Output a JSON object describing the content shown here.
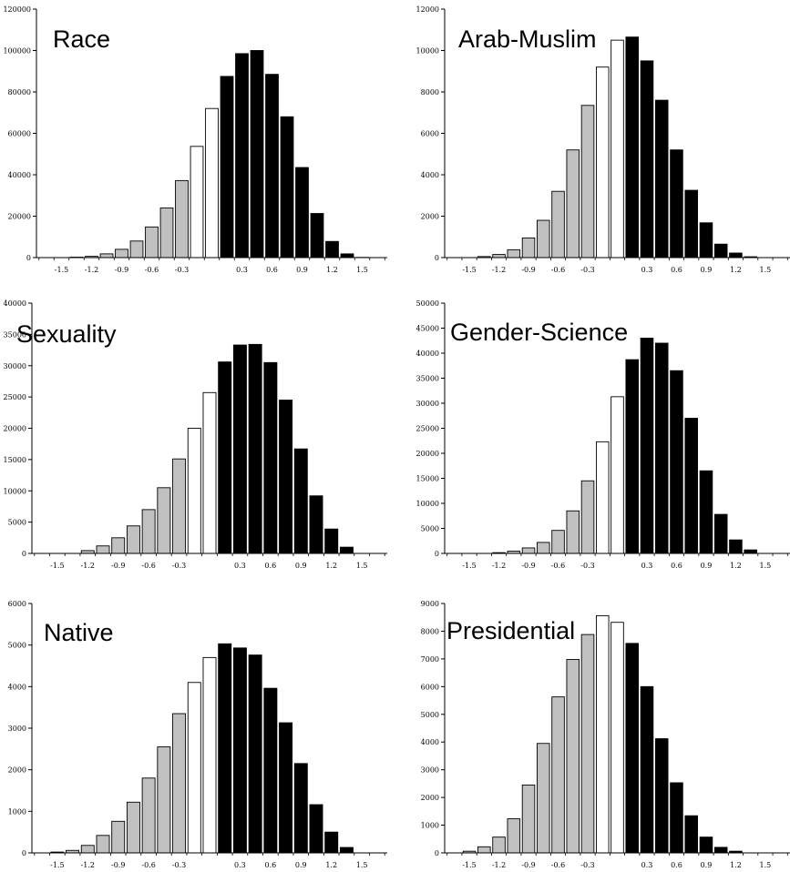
{
  "chart_data": [
    {
      "type": "bar",
      "title": "Race",
      "xlabel": "",
      "ylabel": "",
      "ylim": [
        0,
        120000
      ],
      "yticks": [
        "0",
        "20000",
        "40000",
        "60000",
        "80000",
        "100000",
        "120000"
      ],
      "xticks": [
        "-1.5",
        "-1.2",
        "-0.9",
        "-0.6",
        "-0.3",
        "0.3",
        "0.6",
        "0.9",
        "1.2",
        "1.5"
      ],
      "x": [
        -1.65,
        -1.5,
        -1.35,
        -1.2,
        -1.05,
        -0.9,
        -0.75,
        -0.6,
        -0.45,
        -0.3,
        -0.15,
        0.0,
        0.15,
        0.3,
        0.45,
        0.6,
        0.75,
        0.9,
        1.05,
        1.2,
        1.35,
        1.5,
        1.65
      ],
      "values": [
        0,
        0,
        200,
        600,
        1800,
        4000,
        8000,
        14800,
        24000,
        37200,
        53700,
        72000,
        87500,
        98500,
        100000,
        88500,
        68000,
        43500,
        21300,
        7800,
        1800,
        100,
        0
      ],
      "colors": [
        "#c0c0c0",
        "#c0c0c0",
        "#c0c0c0",
        "#c0c0c0",
        "#c0c0c0",
        "#c0c0c0",
        "#c0c0c0",
        "#c0c0c0",
        "#c0c0c0",
        "#c0c0c0",
        "#ffffff",
        "#ffffff",
        "#000000",
        "#000000",
        "#000000",
        "#000000",
        "#000000",
        "#000000",
        "#000000",
        "#000000",
        "#000000",
        "#000000",
        "#000000"
      ]
    },
    {
      "type": "bar",
      "title": "Arab-Muslim",
      "xlabel": "",
      "ylabel": "",
      "ylim": [
        0,
        12000
      ],
      "yticks": [
        "0",
        "2000",
        "4000",
        "6000",
        "8000",
        "10000",
        "12000"
      ],
      "xticks": [
        "-1.5",
        "-1.2",
        "-0.9",
        "-0.6",
        "-0.3",
        "0.3",
        "0.6",
        "0.9",
        "1.2",
        "1.5"
      ],
      "x": [
        -1.65,
        -1.5,
        -1.35,
        -1.2,
        -1.05,
        -0.9,
        -0.75,
        -0.6,
        -0.45,
        -0.3,
        -0.15,
        0.0,
        0.15,
        0.3,
        0.45,
        0.6,
        0.75,
        0.9,
        1.05,
        1.2,
        1.35,
        1.5,
        1.65
      ],
      "values": [
        0,
        0,
        50,
        150,
        380,
        950,
        1800,
        3200,
        5200,
        7350,
        9200,
        10500,
        10650,
        9500,
        7600,
        5200,
        3250,
        1680,
        650,
        220,
        40,
        0,
        0
      ],
      "colors": [
        "#c0c0c0",
        "#c0c0c0",
        "#c0c0c0",
        "#c0c0c0",
        "#c0c0c0",
        "#c0c0c0",
        "#c0c0c0",
        "#c0c0c0",
        "#c0c0c0",
        "#c0c0c0",
        "#ffffff",
        "#ffffff",
        "#000000",
        "#000000",
        "#000000",
        "#000000",
        "#000000",
        "#000000",
        "#000000",
        "#000000",
        "#000000",
        "#000000",
        "#000000"
      ]
    },
    {
      "type": "bar",
      "title": "Sexuality",
      "xlabel": "",
      "ylabel": "",
      "ylim": [
        0,
        40000
      ],
      "yticks": [
        "0",
        "5000",
        "10000",
        "15000",
        "20000",
        "25000",
        "30000",
        "35000",
        "40000"
      ],
      "xticks": [
        "-1.5",
        "-1.2",
        "-0.9",
        "-0.6",
        "-0.3",
        "0.3",
        "0.6",
        "0.9",
        "1.2",
        "1.5"
      ],
      "x": [
        -1.65,
        -1.5,
        -1.35,
        -1.2,
        -1.05,
        -0.9,
        -0.75,
        -0.6,
        -0.45,
        -0.3,
        -0.15,
        0.0,
        0.15,
        0.3,
        0.45,
        0.6,
        0.75,
        0.9,
        1.05,
        1.2,
        1.35,
        1.5,
        1.65
      ],
      "values": [
        0,
        0,
        0,
        450,
        1200,
        2500,
        4400,
        7000,
        10500,
        15100,
        20000,
        25700,
        30600,
        33300,
        33400,
        30500,
        24500,
        16700,
        9200,
        3900,
        1000,
        0,
        0
      ],
      "colors": [
        "#c0c0c0",
        "#c0c0c0",
        "#c0c0c0",
        "#c0c0c0",
        "#c0c0c0",
        "#c0c0c0",
        "#c0c0c0",
        "#c0c0c0",
        "#c0c0c0",
        "#c0c0c0",
        "#ffffff",
        "#ffffff",
        "#000000",
        "#000000",
        "#000000",
        "#000000",
        "#000000",
        "#000000",
        "#000000",
        "#000000",
        "#000000",
        "#000000",
        "#000000"
      ]
    },
    {
      "type": "bar",
      "title": "Gender-Science",
      "xlabel": "",
      "ylabel": "",
      "ylim": [
        0,
        50000
      ],
      "yticks": [
        "0",
        "5000",
        "10000",
        "15000",
        "20000",
        "25000",
        "30000",
        "35000",
        "40000",
        "45000",
        "50000"
      ],
      "xticks": [
        "-1.5",
        "-1.2",
        "-0.9",
        "-0.6",
        "-0.3",
        "0.3",
        "0.6",
        "0.9",
        "1.2",
        "1.5"
      ],
      "x": [
        -1.65,
        -1.5,
        -1.35,
        -1.2,
        -1.05,
        -0.9,
        -0.75,
        -0.6,
        -0.45,
        -0.3,
        -0.15,
        0.0,
        0.15,
        0.3,
        0.45,
        0.6,
        0.75,
        0.9,
        1.05,
        1.2,
        1.35,
        1.5,
        1.65
      ],
      "values": [
        0,
        0,
        0,
        150,
        450,
        1100,
        2200,
        4600,
        8500,
        14500,
        22300,
        31300,
        38700,
        43000,
        42000,
        36500,
        27000,
        16500,
        7800,
        2700,
        700,
        0,
        0
      ],
      "colors": [
        "#c0c0c0",
        "#c0c0c0",
        "#c0c0c0",
        "#c0c0c0",
        "#c0c0c0",
        "#c0c0c0",
        "#c0c0c0",
        "#c0c0c0",
        "#c0c0c0",
        "#c0c0c0",
        "#ffffff",
        "#ffffff",
        "#000000",
        "#000000",
        "#000000",
        "#000000",
        "#000000",
        "#000000",
        "#000000",
        "#000000",
        "#000000",
        "#000000",
        "#000000"
      ]
    },
    {
      "type": "bar",
      "title": "Native",
      "xlabel": "",
      "ylabel": "",
      "ylim": [
        0,
        6000
      ],
      "yticks": [
        "0",
        "1000",
        "2000",
        "3000",
        "4000",
        "5000",
        "6000"
      ],
      "xticks": [
        "-1.5",
        "-1.2",
        "-0.9",
        "-0.6",
        "-0.3",
        "0.3",
        "0.6",
        "0.9",
        "1.2",
        "1.5"
      ],
      "x": [
        -1.65,
        -1.5,
        -1.35,
        -1.2,
        -1.05,
        -0.9,
        -0.75,
        -0.6,
        -0.45,
        -0.3,
        -0.15,
        0.0,
        0.15,
        0.3,
        0.45,
        0.6,
        0.75,
        0.9,
        1.05,
        1.2,
        1.35,
        1.5,
        1.65
      ],
      "values": [
        0,
        20,
        60,
        180,
        420,
        760,
        1220,
        1800,
        2550,
        3350,
        4100,
        4700,
        5030,
        4930,
        4760,
        3960,
        3130,
        2150,
        1160,
        500,
        130,
        0,
        0
      ],
      "colors": [
        "#c0c0c0",
        "#c0c0c0",
        "#c0c0c0",
        "#c0c0c0",
        "#c0c0c0",
        "#c0c0c0",
        "#c0c0c0",
        "#c0c0c0",
        "#c0c0c0",
        "#c0c0c0",
        "#ffffff",
        "#ffffff",
        "#000000",
        "#000000",
        "#000000",
        "#000000",
        "#000000",
        "#000000",
        "#000000",
        "#000000",
        "#000000",
        "#000000",
        "#000000"
      ]
    },
    {
      "type": "bar",
      "title": "Presidential",
      "xlabel": "",
      "ylabel": "",
      "ylim": [
        0,
        9000
      ],
      "yticks": [
        "0",
        "1000",
        "2000",
        "3000",
        "4000",
        "5000",
        "6000",
        "7000",
        "8000",
        "9000"
      ],
      "xticks": [
        "-1.5",
        "-1.2",
        "-0.9",
        "-0.6",
        "-0.3",
        "0.3",
        "0.6",
        "0.9",
        "1.2",
        "1.5"
      ],
      "x": [
        -1.65,
        -1.5,
        -1.35,
        -1.2,
        -1.05,
        -0.9,
        -0.75,
        -0.6,
        -0.45,
        -0.3,
        -0.15,
        0.0,
        0.15,
        0.3,
        0.45,
        0.6,
        0.75,
        0.9,
        1.05,
        1.2,
        1.35,
        1.5,
        1.65
      ],
      "values": [
        0,
        60,
        220,
        570,
        1230,
        2450,
        3950,
        5630,
        6980,
        7880,
        8560,
        8320,
        7560,
        6000,
        4120,
        2530,
        1340,
        570,
        200,
        60,
        0,
        0,
        0
      ],
      "colors": [
        "#c0c0c0",
        "#c0c0c0",
        "#c0c0c0",
        "#c0c0c0",
        "#c0c0c0",
        "#c0c0c0",
        "#c0c0c0",
        "#c0c0c0",
        "#c0c0c0",
        "#c0c0c0",
        "#ffffff",
        "#ffffff",
        "#000000",
        "#000000",
        "#000000",
        "#000000",
        "#000000",
        "#000000",
        "#000000",
        "#000000",
        "#000000",
        "#000000",
        "#000000"
      ]
    }
  ]
}
